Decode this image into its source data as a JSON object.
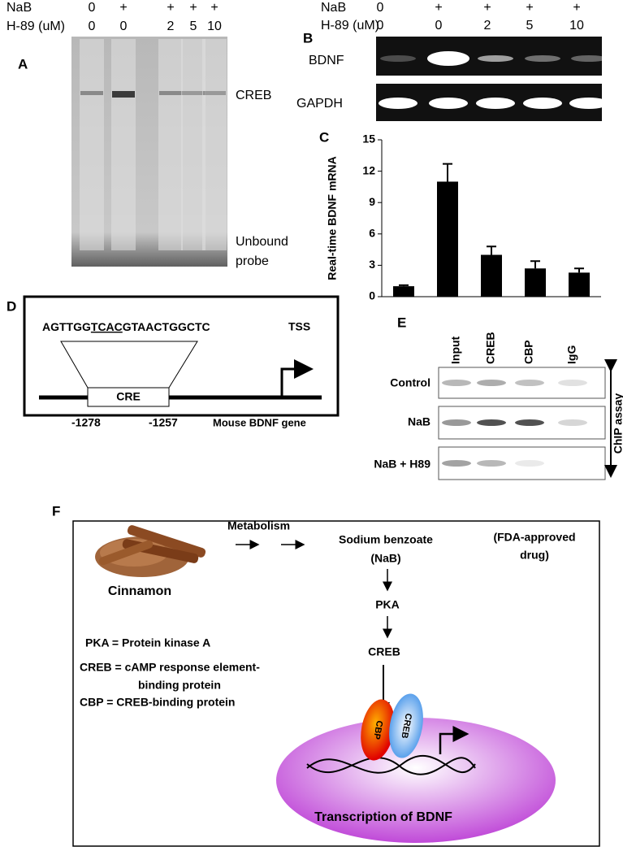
{
  "panels": {
    "A": {
      "letter": "A",
      "rows": [
        {
          "label": "NaB",
          "values": [
            "0",
            "+",
            "+",
            "+",
            "+"
          ]
        },
        {
          "label": "H-89 (uM)",
          "values": [
            "0",
            "0",
            "2",
            "5",
            "10"
          ]
        }
      ],
      "band_labels": [
        "CREB",
        "Unbound",
        "probe"
      ]
    },
    "B": {
      "letter": "B",
      "rows": [
        {
          "label": "NaB",
          "values": [
            "0",
            "+",
            "+",
            "+",
            "+"
          ]
        },
        {
          "label": "H-89 (uM)",
          "values": [
            "0",
            "0",
            "2",
            "5",
            "10"
          ]
        }
      ],
      "gel_labels": [
        "BDNF",
        "GAPDH"
      ]
    },
    "D": {
      "letter": "D",
      "sequence": [
        "AGTTGG",
        "TCAC",
        "GTAACTGGCTC"
      ],
      "tss": "TSS",
      "element": "CRE",
      "positions": [
        "-1278",
        "-1257"
      ],
      "gene": "Mouse BDNF gene"
    },
    "E": {
      "letter": "E",
      "columns": [
        "Input",
        "CREB",
        "CBP",
        "IgG"
      ],
      "rows": [
        "Control",
        "NaB",
        "NaB + H89"
      ],
      "side_label": "ChIP assay"
    },
    "F": {
      "letter": "F",
      "source": "Cinnamon",
      "step": "Metabolism",
      "drug": [
        "Sodium benzoate",
        "(NaB)"
      ],
      "note": [
        "(FDA-approved",
        "drug)"
      ],
      "pathway": [
        "PKA",
        "CREB"
      ],
      "definitions": [
        "PKA = Protein kinase A",
        "CREB = cAMP response element-",
        "binding protein",
        "CBP = CREB-binding protein"
      ],
      "proteins": [
        "CBP",
        "CREB"
      ],
      "outcome": "Transcription of BDNF"
    }
  },
  "chart_data": {
    "type": "bar",
    "panel_label": "C",
    "ylabel": "Real-time BDNF mRNA",
    "categories": [
      null,
      null,
      null,
      null,
      null
    ],
    "values": [
      1.0,
      11.0,
      4.0,
      2.7,
      2.3
    ],
    "errors": [
      0.1,
      1.7,
      0.8,
      0.7,
      0.4
    ],
    "color": "#000000",
    "ylim": [
      0,
      15
    ],
    "yticks": [
      0,
      3,
      6,
      9,
      12,
      15
    ]
  }
}
